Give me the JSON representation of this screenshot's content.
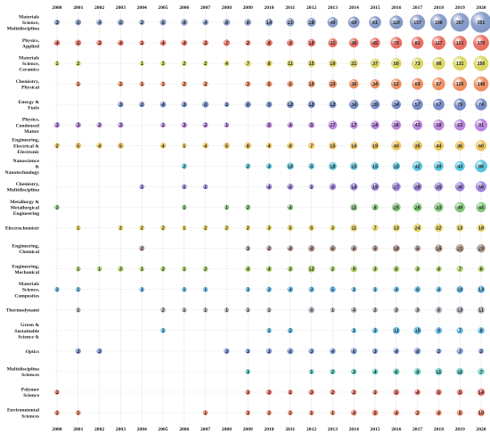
{
  "chart_data": {
    "type": "bubble-matrix",
    "title": "",
    "xlabel": "",
    "ylabel": "",
    "years": [
      "2000",
      "2001",
      "2002",
      "2003",
      "2004",
      "2005",
      "2006",
      "2007",
      "2008",
      "2009",
      "2010",
      "2011",
      "2012",
      "2013",
      "2014",
      "2015",
      "2016",
      "2017",
      "2018",
      "2019",
      "2020"
    ],
    "rows": [
      {
        "label": [
          "Materials",
          "Science,",
          "Multidisciplina"
        ],
        "color": "#7f95c5",
        "values": {
          "2000": 3,
          "2001": 5,
          "2002": 4,
          "2003": 6,
          "2004": 2,
          "2005": 6,
          "2006": 8,
          "2007": 4,
          "2008": 8,
          "2009": 8,
          "2010": 14,
          "2011": 21,
          "2012": 28,
          "2013": 49,
          "2014": 69,
          "2015": 81,
          "2016": 110,
          "2017": 157,
          "2018": 198,
          "2019": 267,
          "2020": 351
        }
      },
      {
        "label": [
          "Physics,",
          "Applied"
        ],
        "color": "#e8675c",
        "values": {
          "2000": 4,
          "2001": 5,
          "2002": 3,
          "2003": 4,
          "2004": 1,
          "2005": 4,
          "2006": 4,
          "2007": 3,
          "2008": 7,
          "2009": 2,
          "2010": 8,
          "2011": 9,
          "2012": 16,
          "2013": 31,
          "2014": 36,
          "2015": 45,
          "2016": 70,
          "2017": 81,
          "2018": 117,
          "2019": 121,
          "2020": 170
        }
      },
      {
        "label": [
          "Materials",
          "Science,",
          "Ceramics"
        ],
        "color": "#d9d55a",
        "values": {
          "2000": 1,
          "2001": 2,
          "2004": 1,
          "2005": 2,
          "2006": 2,
          "2007": 2,
          "2008": 4,
          "2009": 7,
          "2010": 8,
          "2011": 11,
          "2012": 15,
          "2013": 19,
          "2014": 21,
          "2015": 37,
          "2016": 50,
          "2017": 73,
          "2018": 98,
          "2019": 131,
          "2020": 150
        }
      },
      {
        "label": [
          "Chemistry,",
          "Physical"
        ],
        "color": "#ee8a5a",
        "values": {
          "2001": 1,
          "2003": 2,
          "2004": 1,
          "2005": 1,
          "2006": 2,
          "2007": 2,
          "2009": 3,
          "2010": 5,
          "2011": 6,
          "2012": 10,
          "2013": 20,
          "2014": 36,
          "2015": 34,
          "2016": 52,
          "2017": 69,
          "2018": 97,
          "2019": 126,
          "2020": 148
        }
      },
      {
        "label": [
          "Energy &",
          "Fuels"
        ],
        "color": "#6f86c9",
        "values": {
          "2003": 3,
          "2004": 2,
          "2005": 4,
          "2006": 3,
          "2007": 6,
          "2008": 1,
          "2009": 6,
          "2010": 5,
          "2011": 12,
          "2012": 12,
          "2013": 12,
          "2014": 34,
          "2015": 35,
          "2016": 34,
          "2017": 57,
          "2018": 67,
          "2019": 79,
          "2020": 74
        }
      },
      {
        "label": [
          "Physics,",
          "Condensed",
          "Matter"
        ],
        "color": "#b77de0",
        "values": {
          "2000": 3,
          "2001": 3,
          "2002": 2,
          "2003": 3,
          "2005": 1,
          "2006": 3,
          "2007": 2,
          "2008": 1,
          "2010": 5,
          "2011": 4,
          "2012": 5,
          "2013": 27,
          "2014": 17,
          "2015": 24,
          "2016": 36,
          "2017": 43,
          "2018": 58,
          "2019": 63,
          "2020": 91
        }
      },
      {
        "label": [
          "Engineering,",
          "Electrical &",
          "Electronic"
        ],
        "color": "#eec24f",
        "values": {
          "2000": 2,
          "2001": 5,
          "2002": 4,
          "2003": 5,
          "2005": 4,
          "2006": 1,
          "2007": 4,
          "2008": 5,
          "2009": 8,
          "2010": 4,
          "2011": 8,
          "2012": 7,
          "2013": 15,
          "2014": 14,
          "2015": 19,
          "2016": 40,
          "2017": 35,
          "2018": 44,
          "2019": 36,
          "2020": 60
        }
      },
      {
        "label": [
          "Nanoscience",
          "&",
          "Nanotechnology"
        ],
        "color": "#4fc3de",
        "values": {
          "2006": 2,
          "2009": 2,
          "2010": 3,
          "2011": 10,
          "2012": 5,
          "2013": 18,
          "2014": 15,
          "2015": 15,
          "2016": 15,
          "2017": 42,
          "2018": 39,
          "2019": 43,
          "2020": 86
        }
      },
      {
        "label": [
          "Chemistry,",
          "Multidisciplina"
        ],
        "color": "#9a7ee0",
        "values": {
          "2004": 1,
          "2006": 1,
          "2007": 1,
          "2010": 4,
          "2011": 6,
          "2012": 1,
          "2013": 9,
          "2014": 14,
          "2015": 19,
          "2016": 27,
          "2017": 28,
          "2018": 26,
          "2019": 36,
          "2020": 56
        }
      },
      {
        "label": [
          "Metallurgy &",
          "Metallurgical",
          "Engineering"
        ],
        "color": "#7cc472",
        "values": {
          "2000": 1,
          "2006": 1,
          "2008": 1,
          "2009": 2,
          "2011": 4,
          "2014": 11,
          "2015": 8,
          "2016": 25,
          "2017": 26,
          "2018": 33,
          "2019": 49,
          "2020": 44
        }
      },
      {
        "label": [
          "Electrochemistr"
        ],
        "color": "#e6d35a",
        "values": {
          "2001": 1,
          "2003": 2,
          "2004": 2,
          "2005": 2,
          "2006": 1,
          "2007": 2,
          "2008": 2,
          "2009": 2,
          "2010": 3,
          "2011": 5,
          "2012": 5,
          "2013": 3,
          "2014": 11,
          "2015": 7,
          "2016": 13,
          "2017": 24,
          "2018": 22,
          "2019": 13,
          "2020": 18
        }
      },
      {
        "label": [
          "Engineering,",
          "Chemical"
        ],
        "color": "#a89082",
        "values": {
          "2004": 2,
          "2009": 1,
          "2010": 2,
          "2011": 4,
          "2012": 8,
          "2013": 6,
          "2014": 6,
          "2015": 5,
          "2016": 10,
          "2017": 5,
          "2018": 15,
          "2019": 21,
          "2020": 23
        }
      },
      {
        "label": [
          "Engineering,",
          "Mechanical"
        ],
        "color": "#a8cd5e",
        "values": {
          "2001": 1,
          "2002": 1,
          "2003": 3,
          "2004": 1,
          "2005": 2,
          "2006": 1,
          "2007": 2,
          "2009": 4,
          "2010": 4,
          "2011": 3,
          "2012": 12,
          "2013": 2,
          "2014": 9,
          "2015": 3,
          "2016": 6,
          "2017": 3,
          "2018": 4,
          "2019": 7,
          "2020": 6
        }
      },
      {
        "label": [
          "Materials",
          "Science,",
          "Composites"
        ],
        "color": "#5ab6e6",
        "values": {
          "2000": 1,
          "2001": 1,
          "2004": 1,
          "2006": 1,
          "2007": 1,
          "2009": 1,
          "2010": 2,
          "2011": 4,
          "2012": 3,
          "2013": 5,
          "2014": 1,
          "2015": 1,
          "2016": 4,
          "2017": 6,
          "2018": 4,
          "2019": 10,
          "2020": 13
        }
      },
      {
        "label": [
          "Thermodynami"
        ],
        "color": "#a8b0ba",
        "values": {
          "2001": 1,
          "2005": 2,
          "2006": 1,
          "2007": 1,
          "2008": 1,
          "2009": 1,
          "2010": 1,
          "2012": 6,
          "2013": 1,
          "2014": 4,
          "2015": 2,
          "2016": 3,
          "2017": 3,
          "2018": 8,
          "2019": 13,
          "2020": 11
        }
      },
      {
        "label": [
          "Green &",
          "Sustainable",
          "Science &"
        ],
        "color": "#52b6e8",
        "values": {
          "2005": 1,
          "2010": 1,
          "2011": 2,
          "2014": 1,
          "2015": 3,
          "2016": 11,
          "2017": 15,
          "2018": 9,
          "2019": 7,
          "2020": 8
        }
      },
      {
        "label": [
          "Optics"
        ],
        "color": "#7a93d6",
        "values": {
          "2001": 3,
          "2002": 3,
          "2008": 3,
          "2009": 1,
          "2010": 3,
          "2011": 6,
          "2012": 3,
          "2013": 4,
          "2014": 6,
          "2015": 3,
          "2016": 4,
          "2017": 8,
          "2018": 2,
          "2019": 7,
          "2020": 2
        }
      },
      {
        "label": [
          "Multidisciplina",
          "Sciences"
        ],
        "color": "#52c7c0",
        "values": {
          "2009": 1,
          "2012": 1,
          "2013": 2,
          "2014": 3,
          "2015": 4,
          "2016": 6,
          "2017": 9,
          "2018": 11,
          "2019": 11,
          "2020": 7
        }
      },
      {
        "label": [
          "Polymer",
          "Science"
        ],
        "color": "#e86b64",
        "values": {
          "2000": 1,
          "2009": 1,
          "2010": 3,
          "2011": 1,
          "2012": 3,
          "2013": 2,
          "2014": 2,
          "2015": 1,
          "2016": 5,
          "2017": 4,
          "2018": 5,
          "2019": 5,
          "2020": 14
        }
      },
      {
        "label": [
          "Environmental",
          "Sciences"
        ],
        "color": "#ee7a5e",
        "values": {
          "2000": 1,
          "2001": 1,
          "2007": 1,
          "2009": 1,
          "2010": 1,
          "2011": 1,
          "2012": 1,
          "2013": 1,
          "2014": 4,
          "2015": 5,
          "2016": 4,
          "2017": 2,
          "2018": 4,
          "2019": 5,
          "2020": 10
        }
      }
    ]
  }
}
